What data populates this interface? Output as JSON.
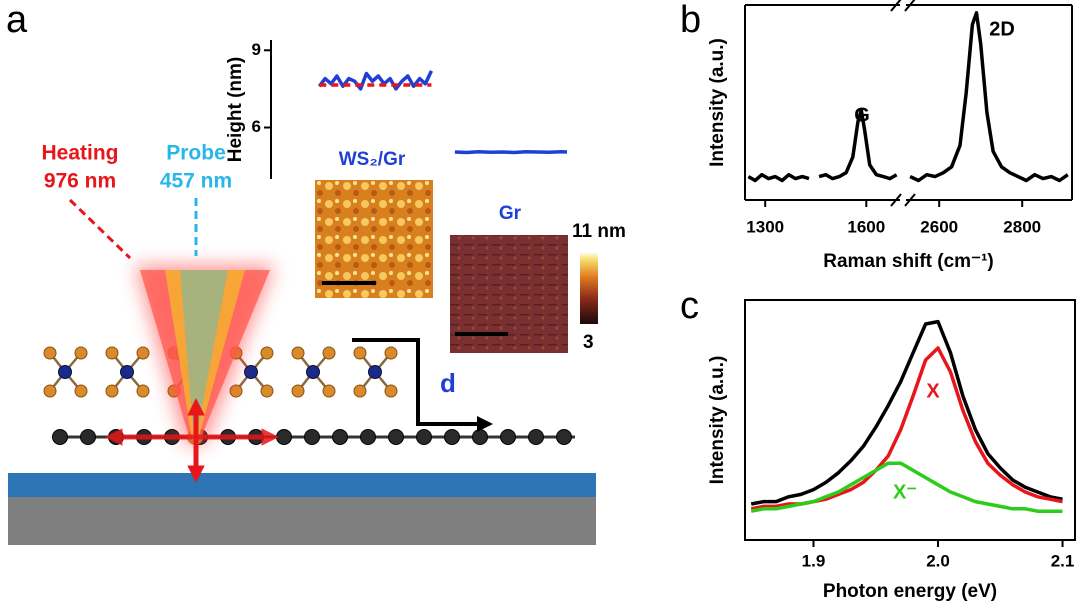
{
  "panels": [
    "a",
    "b",
    "c"
  ],
  "diagram": {
    "heating": "Heating",
    "heating_wavelength": "976 nm",
    "probe": "Probe",
    "probe_wavelength": "457 nm",
    "direction": "d",
    "afm_labels": [
      "WS₂/Gr",
      "Gr"
    ],
    "colorbar_labels": [
      "11 nm",
      "3"
    ]
  },
  "chart_data": [
    {
      "type": "line",
      "ylabel": "Height (nm)",
      "xlim": [
        0,
        10
      ],
      "ylim": [
        4,
        9.4
      ],
      "yticks": [
        6,
        9
      ],
      "series": [
        {
          "color": "#1f3fd6",
          "x": [
            1.5,
            1.7,
            1.9,
            2.1,
            2.3,
            2.5,
            2.7,
            2.9,
            3.1,
            3.3,
            3.5,
            3.7,
            3.9,
            4.1,
            4.3,
            4.5,
            4.7,
            4.9,
            5.1,
            5.3
          ],
          "values": [
            7.6,
            7.9,
            7.7,
            8.0,
            7.6,
            7.9,
            7.8,
            7.5,
            8.1,
            7.8,
            8.0,
            7.7,
            7.9,
            7.5,
            7.8,
            8.0,
            7.6,
            7.9,
            7.7,
            8.2
          ]
        },
        {
          "color": "#e8151b",
          "dashed": true,
          "x": [
            1.5,
            5.3
          ],
          "values": [
            7.65,
            7.65
          ]
        },
        {
          "color": "#1f3fd6",
          "x": [
            6.1,
            6.5,
            6.9,
            7.3,
            7.7,
            8.1,
            8.5,
            8.9,
            9.3,
            9.7,
            9.9
          ],
          "values": [
            5.05,
            5.03,
            5.06,
            5.04,
            5.05,
            5.03,
            5.06,
            5.05,
            5.04,
            5.06,
            5.05
          ]
        }
      ]
    },
    {
      "type": "line",
      "xlabel": "Raman shift (cm⁻¹)",
      "ylabel": "Intensity (a.u.)",
      "color": "#000000",
      "xlim": [
        1240,
        2920
      ],
      "xbreak": [
        1700,
        2520
      ],
      "ylim": [
        0,
        1
      ],
      "xticks": [
        1300,
        1600,
        2600,
        2800
      ],
      "annotations": [
        "G",
        "2D"
      ],
      "x": [
        1250,
        1270,
        1290,
        1310,
        1330,
        1350,
        1370,
        1390,
        1410,
        1430,
        1440,
        1460,
        1480,
        1500,
        1520,
        1540,
        1560,
        1575,
        1585,
        1595,
        1610,
        1630,
        1650,
        1670,
        1690,
        2520,
        2530,
        2550,
        2570,
        2590,
        2610,
        2630,
        2650,
        2665,
        2680,
        2690,
        2700,
        2715,
        2730,
        2750,
        2770,
        2790,
        2810,
        2830,
        2850,
        2870,
        2890,
        2910
      ],
      "values": [
        0.12,
        0.1,
        0.13,
        0.11,
        0.12,
        0.1,
        0.13,
        0.11,
        0.12,
        0.11,
        null,
        0.12,
        0.13,
        0.11,
        0.12,
        0.14,
        0.22,
        0.4,
        0.46,
        0.36,
        0.18,
        0.13,
        0.12,
        0.11,
        0.13,
        null,
        0.12,
        0.1,
        0.13,
        0.12,
        0.14,
        0.17,
        0.28,
        0.55,
        0.9,
        0.96,
        0.8,
        0.45,
        0.25,
        0.17,
        0.14,
        0.12,
        0.1,
        0.13,
        0.11,
        0.12,
        0.1,
        0.13
      ]
    },
    {
      "type": "line",
      "xlabel": "Photon energy (eV)",
      "ylabel": "Intensity (a.u.)",
      "xlim": [
        1.845,
        2.11
      ],
      "ylim": [
        0,
        1
      ],
      "xticks": [
        1.9,
        {
          "value": 2,
          "label": "2.0"
        },
        2.1
      ],
      "annotations": [
        "X",
        "X⁻"
      ],
      "x": [
        1.85,
        1.86,
        1.87,
        1.88,
        1.89,
        1.9,
        1.91,
        1.92,
        1.93,
        1.94,
        1.95,
        1.96,
        1.97,
        1.98,
        1.99,
        2.0,
        2.01,
        2.02,
        2.03,
        2.04,
        2.05,
        2.06,
        2.07,
        2.08,
        2.09,
        2.1
      ],
      "series": [
        {
          "color": "#000000",
          "values": [
            0.15,
            0.16,
            0.16,
            0.18,
            0.19,
            0.21,
            0.24,
            0.28,
            0.33,
            0.39,
            0.47,
            0.56,
            0.66,
            0.78,
            0.9,
            0.91,
            0.78,
            0.6,
            0.46,
            0.36,
            0.3,
            0.25,
            0.22,
            0.2,
            0.18,
            0.17
          ]
        },
        {
          "color": "#e8151b",
          "values": [
            0.13,
            0.14,
            0.14,
            0.15,
            0.15,
            0.16,
            0.17,
            0.19,
            0.21,
            0.24,
            0.29,
            0.35,
            0.46,
            0.6,
            0.75,
            0.8,
            0.7,
            0.54,
            0.41,
            0.32,
            0.27,
            0.23,
            0.2,
            0.18,
            0.17,
            0.16
          ]
        },
        {
          "color": "#2ecc1a",
          "values": [
            0.12,
            0.13,
            0.13,
            0.14,
            0.15,
            0.16,
            0.18,
            0.2,
            0.23,
            0.26,
            0.29,
            0.32,
            0.32,
            0.29,
            0.26,
            0.23,
            0.2,
            0.18,
            0.16,
            0.15,
            0.14,
            0.13,
            0.13,
            0.12,
            0.12,
            0.12
          ]
        }
      ]
    }
  ]
}
